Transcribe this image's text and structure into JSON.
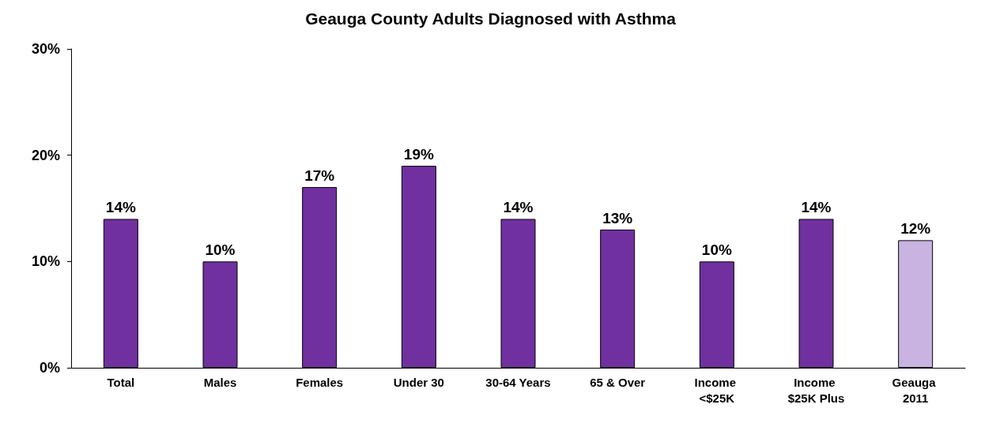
{
  "chart_data": {
    "type": "bar",
    "title": "Geauga County Adults Diagnosed with Asthma",
    "categories": [
      "Total",
      "Males",
      "Females",
      "Under 30",
      "30-64 Years",
      "65 & Over",
      "Income <$25K",
      "Income $25K Plus",
      "Geauga 2011"
    ],
    "values": [
      14,
      10,
      17,
      19,
      14,
      13,
      10,
      14,
      12
    ],
    "value_labels": [
      "14%",
      "10%",
      "17%",
      "19%",
      "14%",
      "13%",
      "10%",
      "14%",
      "12%"
    ],
    "colors": [
      "#7030a0",
      "#7030a0",
      "#7030a0",
      "#7030a0",
      "#7030a0",
      "#7030a0",
      "#7030a0",
      "#7030a0",
      "#c9b3e0"
    ],
    "ylim": [
      0,
      30
    ],
    "yticks": [
      {
        "value": 0,
        "label": "0%"
      },
      {
        "value": 10,
        "label": "10%"
      },
      {
        "value": 20,
        "label": "20%"
      },
      {
        "value": 30,
        "label": "30%"
      }
    ],
    "grid": false
  }
}
